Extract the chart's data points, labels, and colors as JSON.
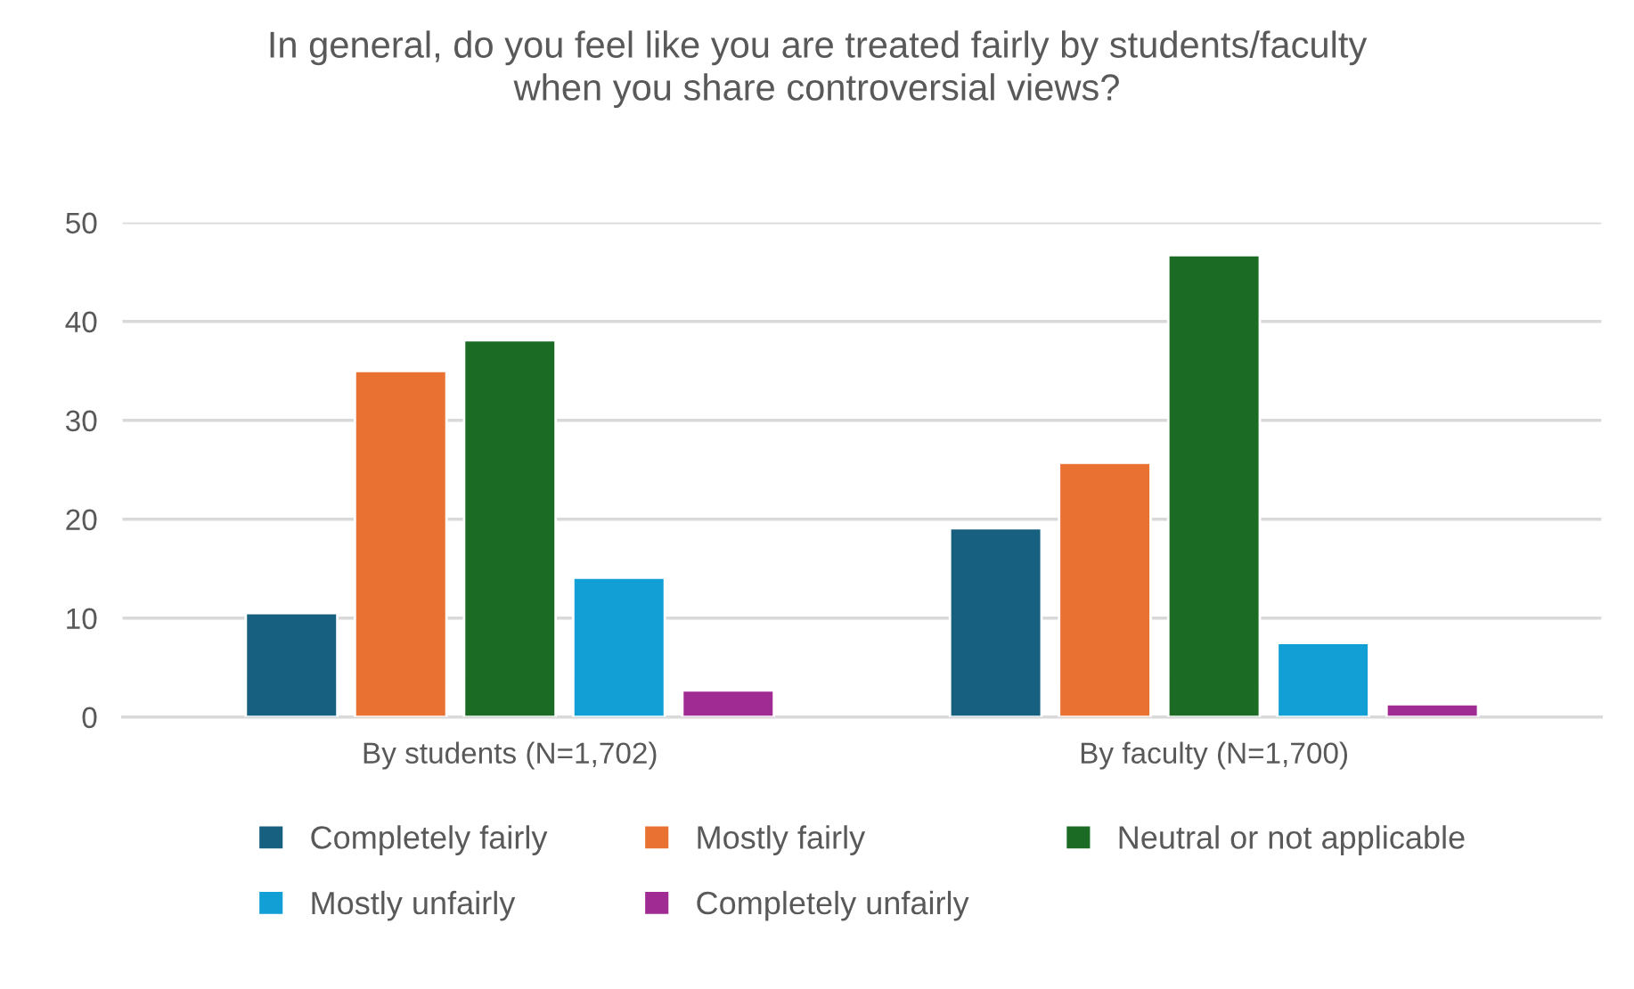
{
  "chart_data": {
    "type": "bar",
    "title": "In general, do you feel like you are treated fairly by students/faculty\nwhen you share controversial views?",
    "categories": [
      "By students (N=1,702)",
      "By faculty (N=1,700)"
    ],
    "series": [
      {
        "name": "Completely fairly",
        "color": "#17607f",
        "values": [
          10.5,
          19.1
        ]
      },
      {
        "name": "Mostly fairly",
        "color": "#e97132",
        "values": [
          35.0,
          25.7
        ]
      },
      {
        "name": "Neutral or not applicable",
        "color": "#1b6b24",
        "values": [
          38.1,
          46.7
        ]
      },
      {
        "name": "Mostly unfairly",
        "color": "#119fd6",
        "values": [
          14.1,
          7.5
        ]
      },
      {
        "name": "Completely unfairly",
        "color": "#a02b93",
        "values": [
          2.7,
          1.3
        ]
      }
    ],
    "ylim": [
      0,
      50
    ],
    "yticks": [
      0,
      10,
      20,
      30,
      40,
      50
    ],
    "grid": "y",
    "legend": "bottom"
  }
}
